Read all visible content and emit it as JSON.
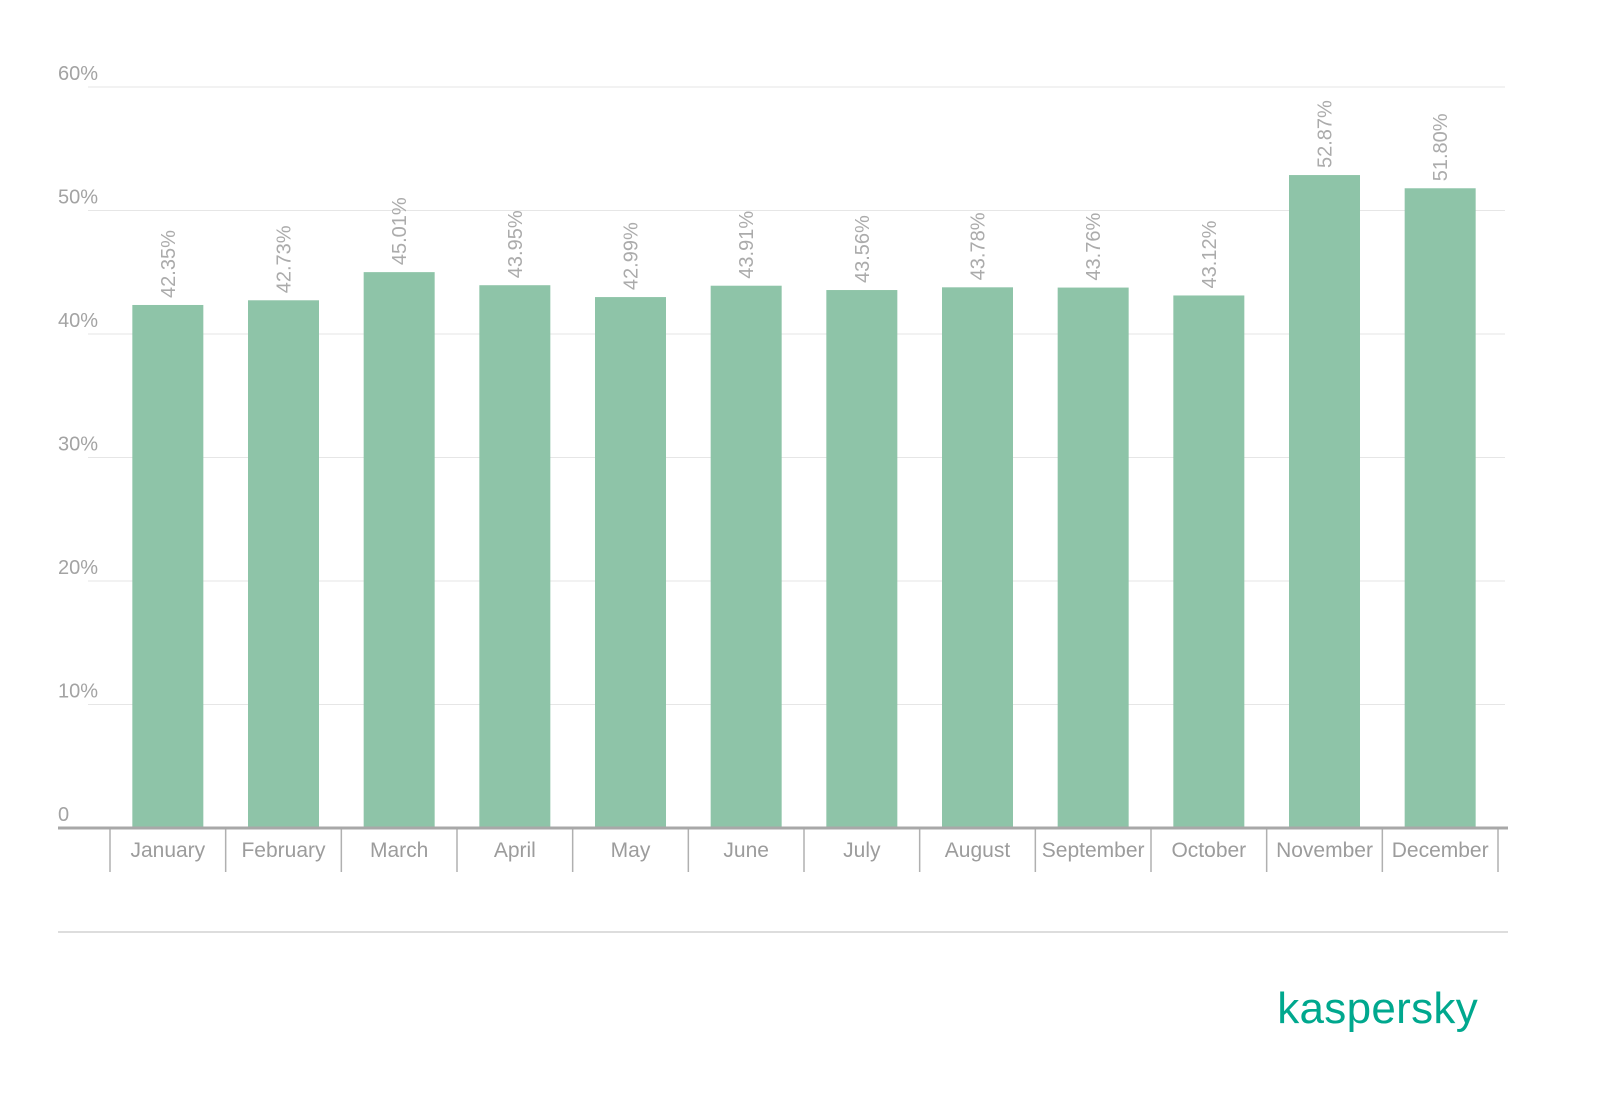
{
  "chart_data": {
    "type": "bar",
    "categories": [
      "January",
      "February",
      "March",
      "April",
      "May",
      "June",
      "July",
      "August",
      "September",
      "October",
      "November",
      "December"
    ],
    "values": [
      42.35,
      42.73,
      45.01,
      43.95,
      42.99,
      43.91,
      43.56,
      43.78,
      43.76,
      43.12,
      52.87,
      51.8
    ],
    "value_labels": [
      "42.35%",
      "42.73%",
      "45.01%",
      "43.95%",
      "42.99%",
      "43.91%",
      "43.56%",
      "43.78%",
      "43.76%",
      "43.12%",
      "52.87%",
      "51.80%"
    ],
    "ylim": [
      0,
      60
    ],
    "yticks": [
      0,
      10,
      20,
      30,
      40,
      50,
      60
    ],
    "ytick_labels": [
      "0",
      "10%",
      "20%",
      "30%",
      "40%",
      "50%",
      "60%"
    ],
    "grid": true
  },
  "colors": {
    "bar": "#8ec4a8",
    "grid": "#e6e6e6",
    "axis": "#a8a8a8",
    "separator": "#b0b0b0",
    "footer_line": "#dddddd",
    "logo": "#00a88e"
  },
  "logo": {
    "text": "kaspersky"
  }
}
